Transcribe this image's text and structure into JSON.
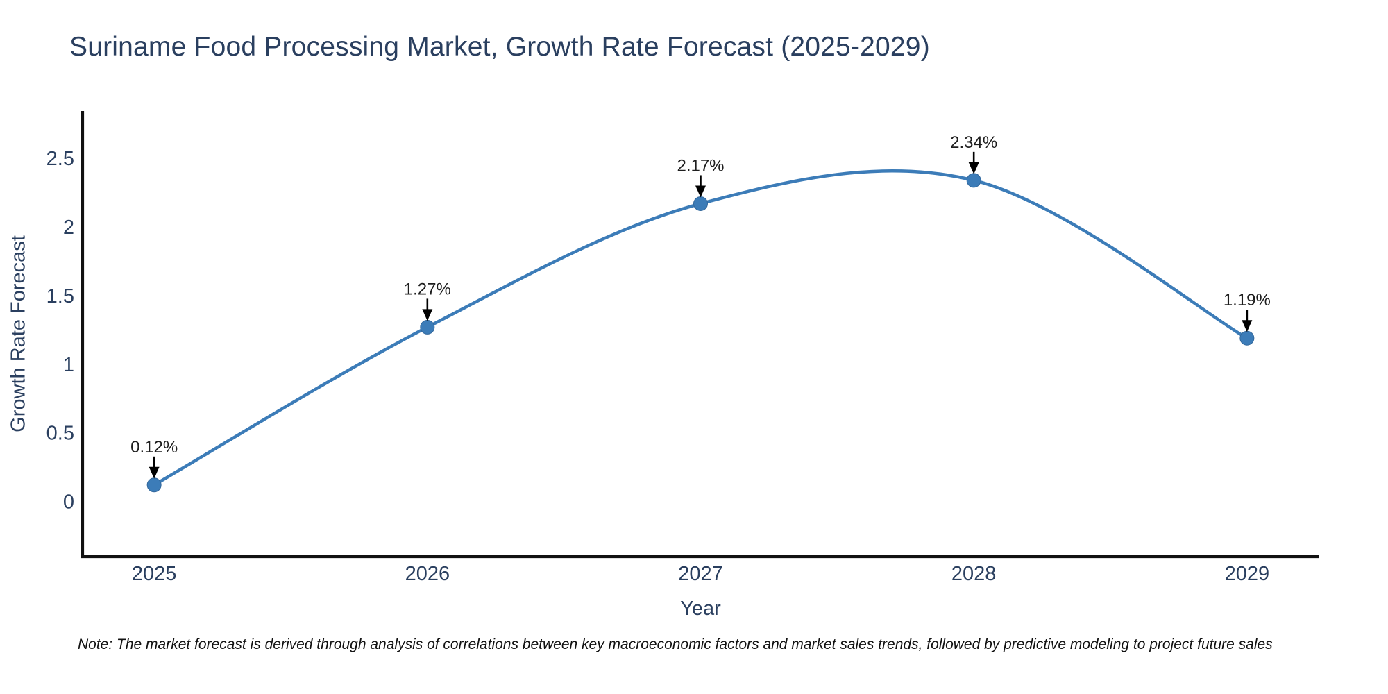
{
  "page": {
    "background": "#ffffff"
  },
  "title": {
    "text": "Suriname Food Processing Market, Growth Rate Forecast (2025-2029)",
    "color": "#2a3f5f"
  },
  "footnote": {
    "text": "Note: The market forecast is derived through analysis of correlations between key macroeconomic factors and market sales trends, followed by predictive modeling to project future sales"
  },
  "chart_data": {
    "type": "line",
    "line_shape": "spline",
    "title": "Suriname Food Processing Market, Growth Rate Forecast (2025-2029)",
    "x": [
      2025,
      2026,
      2027,
      2028,
      2029
    ],
    "y": [
      0.12,
      1.27,
      2.17,
      2.34,
      1.19
    ],
    "point_labels": [
      "0.12%",
      "1.27%",
      "2.17%",
      "2.34%",
      "1.19%"
    ],
    "x_tick_labels": [
      "2025",
      "2026",
      "2027",
      "2028",
      "2029"
    ],
    "y_tick_values": [
      0,
      0.5,
      1,
      1.5,
      2,
      2.5
    ],
    "y_tick_labels": [
      "0",
      "0.5",
      "1",
      "1.5",
      "2",
      "2.5"
    ],
    "xlabel": "Year",
    "ylabel": "Growth Rate Forecast",
    "xlim": [
      2024.738,
      2029.262
    ],
    "ylim": [
      -0.402,
      2.845
    ],
    "grid": false,
    "legend": "none",
    "colors": {
      "line": "#3c7cb8",
      "marker": "#3c7cb8",
      "marker_edge": "#33689c",
      "axis": "#111111",
      "tick_text": "#2a3f5f",
      "annotation_text": "#1e1e1e",
      "arrow": "#000000"
    }
  }
}
